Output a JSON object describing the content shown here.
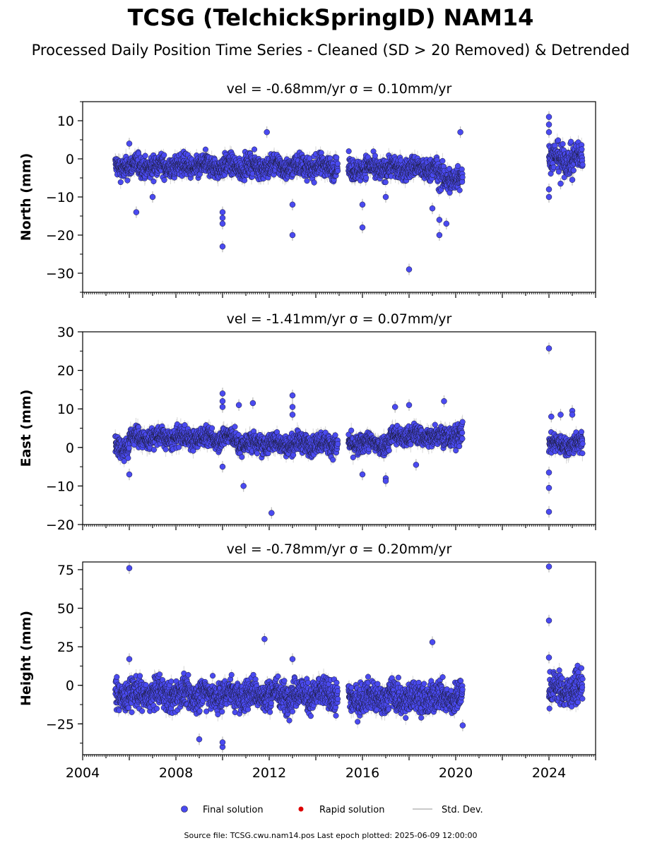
{
  "page": {
    "title": "TCSG (TelchickSpringID) NAM14",
    "subtitle": "Processed Daily Position Time Series - Cleaned (SD > 20 Removed) & Detrended",
    "source": "Source file: TCSG.cwu.nam14.pos  Last epoch plotted: 2025-06-09 12:00:00"
  },
  "colors": {
    "final": "#4a4af0",
    "final_edge": "#1a1a33",
    "rapid": "#dd0000",
    "stddev": "#b8b8b8"
  },
  "legend": [
    {
      "label": "Final solution",
      "marker": "circle",
      "color": "#4a4af0"
    },
    {
      "label": "Rapid solution",
      "marker": "circle",
      "color": "#dd0000"
    },
    {
      "label": "Std. Dev.",
      "marker": "line",
      "color": "#b8b8b8"
    }
  ],
  "chart_data": [
    {
      "type": "scatter",
      "component": "north",
      "title": "vel = -0.68mm/yr   σ = 0.10mm/yr",
      "ylabel": "North (mm)",
      "xlim": [
        2004,
        2026
      ],
      "ylim": [
        -35,
        15
      ],
      "yticks": [
        -30,
        -20,
        -10,
        0,
        10
      ],
      "xticks": [
        2004,
        2008,
        2012,
        2016,
        2020,
        2024
      ],
      "series": [
        {
          "segments": [
            {
              "start": 2005.4,
              "end": 2014.95,
              "center": -2.0,
              "spread": 2.0
            },
            {
              "start": 2015.4,
              "end": 2019.2,
              "center": -2.5,
              "spread": 2.0
            },
            {
              "start": 2019.2,
              "end": 2020.3,
              "center": -5.0,
              "spread": 2.5
            },
            {
              "start": 2024.0,
              "end": 2025.45,
              "center": 0.0,
              "spread": 2.5
            }
          ],
          "outliers": [
            [
              2006.0,
              4.0
            ],
            [
              2006.3,
              -14.0
            ],
            [
              2007.0,
              -10.0
            ],
            [
              2010.0,
              -23.0
            ],
            [
              2010.0,
              -17.0
            ],
            [
              2010.0,
              -15.5
            ],
            [
              2010.0,
              -14.0
            ],
            [
              2011.9,
              7.0
            ],
            [
              2013.0,
              -12.0
            ],
            [
              2013.0,
              -20.0
            ],
            [
              2016.0,
              -12.0
            ],
            [
              2016.0,
              -18.0
            ],
            [
              2017.0,
              -10.0
            ],
            [
              2018.0,
              -29.0
            ],
            [
              2019.0,
              -13.0
            ],
            [
              2019.3,
              -16.0
            ],
            [
              2019.3,
              -20.0
            ],
            [
              2019.6,
              -17.0
            ],
            [
              2020.2,
              7.0
            ],
            [
              2024.0,
              11.0
            ],
            [
              2024.0,
              9.0
            ],
            [
              2024.0,
              7.0
            ],
            [
              2024.0,
              -8.0
            ],
            [
              2024.0,
              -10.0
            ],
            [
              2024.5,
              -6.5
            ],
            [
              2025.0,
              -5.5
            ]
          ]
        }
      ]
    },
    {
      "type": "scatter",
      "component": "east",
      "title": "vel = -1.41mm/yr   σ = 0.07mm/yr",
      "ylabel": "East (mm)",
      "xlim": [
        2004,
        2026
      ],
      "ylim": [
        -20,
        30
      ],
      "yticks": [
        -20,
        -10,
        0,
        10,
        20,
        30
      ],
      "xticks": [
        2004,
        2008,
        2012,
        2016,
        2020,
        2024
      ],
      "series": [
        {
          "segments": [
            {
              "start": 2005.4,
              "end": 2006.0,
              "center": 0.5,
              "spread": 2.0
            },
            {
              "start": 2006.0,
              "end": 2010.6,
              "center": 2.5,
              "spread": 1.8
            },
            {
              "start": 2010.6,
              "end": 2014.95,
              "center": 1.0,
              "spread": 1.8
            },
            {
              "start": 2015.4,
              "end": 2017.2,
              "center": 1.0,
              "spread": 1.8
            },
            {
              "start": 2017.2,
              "end": 2019.3,
              "center": 3.0,
              "spread": 1.8
            },
            {
              "start": 2019.3,
              "end": 2020.3,
              "center": 3.0,
              "spread": 2.0
            },
            {
              "start": 2024.0,
              "end": 2025.45,
              "center": 0.8,
              "spread": 1.8
            }
          ],
          "outliers": [
            [
              2006.0,
              -7.0
            ],
            [
              2010.0,
              14.0
            ],
            [
              2010.0,
              12.0
            ],
            [
              2010.0,
              10.5
            ],
            [
              2010.0,
              -5.0
            ],
            [
              2010.7,
              11.0
            ],
            [
              2010.9,
              -10.0
            ],
            [
              2011.3,
              11.5
            ],
            [
              2012.1,
              -17.0
            ],
            [
              2013.0,
              13.5
            ],
            [
              2013.0,
              10.5
            ],
            [
              2013.0,
              8.5
            ],
            [
              2016.0,
              -7.0
            ],
            [
              2017.0,
              -8.0
            ],
            [
              2017.0,
              -8.7
            ],
            [
              2017.4,
              10.5
            ],
            [
              2018.0,
              11.0
            ],
            [
              2018.3,
              -4.5
            ],
            [
              2019.5,
              12.0
            ],
            [
              2024.0,
              25.7
            ],
            [
              2024.0,
              -6.5
            ],
            [
              2024.0,
              -10.5
            ],
            [
              2024.0,
              -16.7
            ],
            [
              2024.1,
              8.0
            ],
            [
              2024.5,
              8.5
            ],
            [
              2025.0,
              9.5
            ],
            [
              2025.0,
              8.5
            ]
          ]
        }
      ]
    },
    {
      "type": "scatter",
      "component": "height",
      "title": "vel = -0.78mm/yr   σ = 0.20mm/yr",
      "ylabel": "Height (mm)",
      "xlim": [
        2004,
        2026
      ],
      "ylim": [
        -45,
        80
      ],
      "yticks": [
        -25,
        0,
        25,
        50,
        75
      ],
      "xticks": [
        2004,
        2008,
        2012,
        2016,
        2020,
        2024
      ],
      "xticklabels": [
        "2004",
        "2008",
        "2012",
        "2016",
        "2020",
        "2024"
      ],
      "series": [
        {
          "segments": [
            {
              "start": 2005.4,
              "end": 2014.95,
              "center": -6.0,
              "spread": 7.0
            },
            {
              "start": 2015.4,
              "end": 2020.3,
              "center": -8.0,
              "spread": 7.0
            },
            {
              "start": 2024.0,
              "end": 2025.45,
              "center": -3.0,
              "spread": 7.0
            }
          ],
          "outliers": [
            [
              2006.0,
              76.0
            ],
            [
              2006.0,
              17.0
            ],
            [
              2009.0,
              -35.0
            ],
            [
              2010.0,
              -40.0
            ],
            [
              2010.0,
              -37.0
            ],
            [
              2011.8,
              30.0
            ],
            [
              2013.0,
              17.0
            ],
            [
              2019.0,
              28.0
            ],
            [
              2020.3,
              -26.0
            ],
            [
              2024.0,
              77.0
            ],
            [
              2024.0,
              42.0
            ],
            [
              2024.0,
              18.0
            ]
          ]
        }
      ]
    }
  ]
}
